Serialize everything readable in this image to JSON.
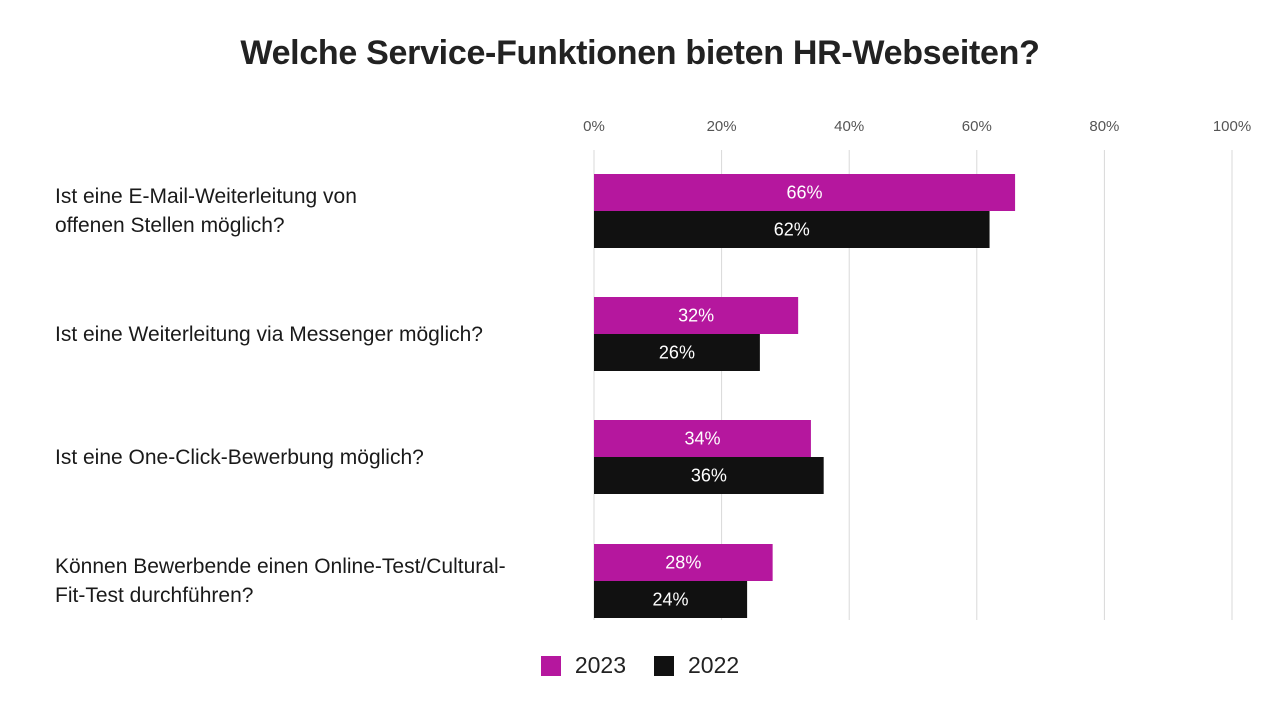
{
  "chart_data": {
    "type": "bar",
    "orientation": "horizontal",
    "title": "Welche Service-Funktionen bieten HR-Webseiten?",
    "categories": [
      [
        "Ist eine E-Mail-Weiterleitung von",
        "offenen Stellen möglich?"
      ],
      [
        "Ist eine Weiterleitung via Messenger möglich?"
      ],
      [
        "Ist eine One-Click-Bewerbung möglich?"
      ],
      [
        "Können Bewerbende einen Online-Test/Cultural-",
        "Fit-Test durchführen?"
      ]
    ],
    "series": [
      {
        "name": "2023",
        "values": [
          66,
          32,
          34,
          28
        ],
        "color": "#b5179e"
      },
      {
        "name": "2022",
        "values": [
          62,
          26,
          36,
          24
        ],
        "color": "#111111"
      }
    ],
    "xlim": [
      0,
      100
    ],
    "x_ticks": [
      "0%",
      "20%",
      "40%",
      "60%",
      "80%",
      "100%"
    ],
    "x_tick_values": [
      0,
      20,
      40,
      60,
      80,
      100
    ],
    "value_suffix": "%",
    "grid": true,
    "axis_position": "top",
    "legend_position": "bottom"
  }
}
